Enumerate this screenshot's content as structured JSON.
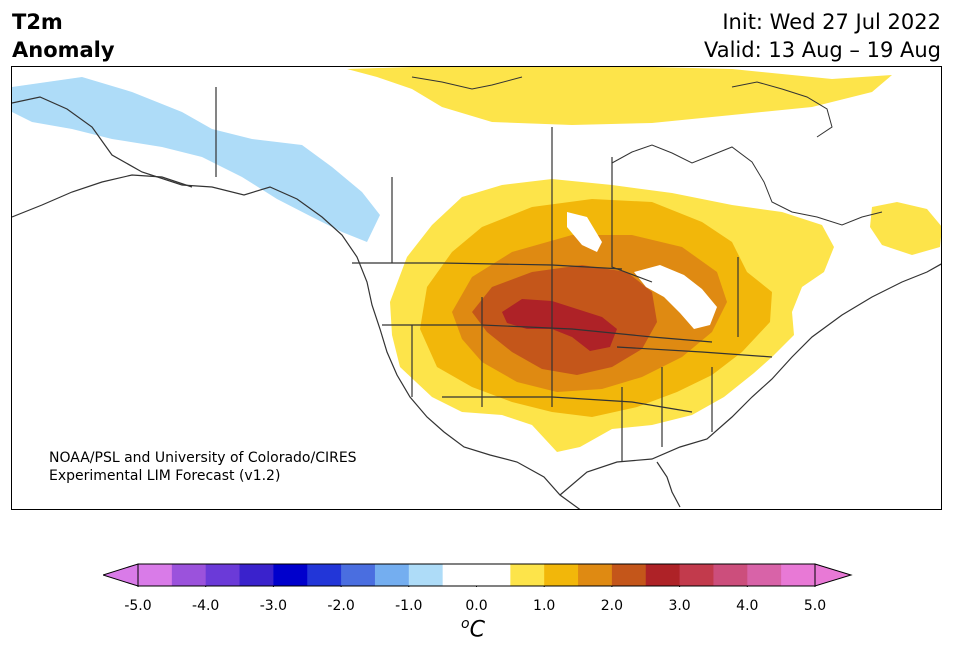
{
  "header": {
    "variable": "T2m",
    "subtitle": "Anomaly",
    "init": "Init: Wed 27 Jul 2022",
    "valid": "Valid: 13 Aug – 19 Aug"
  },
  "credit": {
    "line1": "NOAA/PSL and University of Colorado/CIRES",
    "line2": "Experimental LIM Forecast (v1.2)"
  },
  "colorbar": {
    "ticks": [
      "-5.0",
      "-4.0",
      "-3.0",
      "-2.0",
      "-1.0",
      "0.0",
      "1.0",
      "2.0",
      "3.0",
      "4.0",
      "5.0"
    ],
    "unit_base": "C",
    "unit_sup": "o",
    "colors": [
      "#d97be8",
      "#9b52dc",
      "#6b3ad8",
      "#3a22cc",
      "#0000cc",
      "#2236d8",
      "#4a6ee0",
      "#74aef0",
      "#aedcf8",
      "#ffffff",
      "#ffffff",
      "#fde44a",
      "#f2b70a",
      "#df8a12",
      "#c4561a",
      "#ae2227",
      "#c23a4c",
      "#cc4e7c",
      "#d863a8",
      "#e879d6"
    ],
    "under_color": "#d97be8",
    "over_color": "#e879d6"
  },
  "map": {
    "region": "North America",
    "anomaly_colors": {
      "cool_1": "#aedcf8",
      "warm_1": "#fde44a",
      "warm_2": "#f2b70a",
      "warm_3": "#df8a12",
      "warm_4": "#c4561a",
      "warm_5": "#ae2227"
    }
  }
}
